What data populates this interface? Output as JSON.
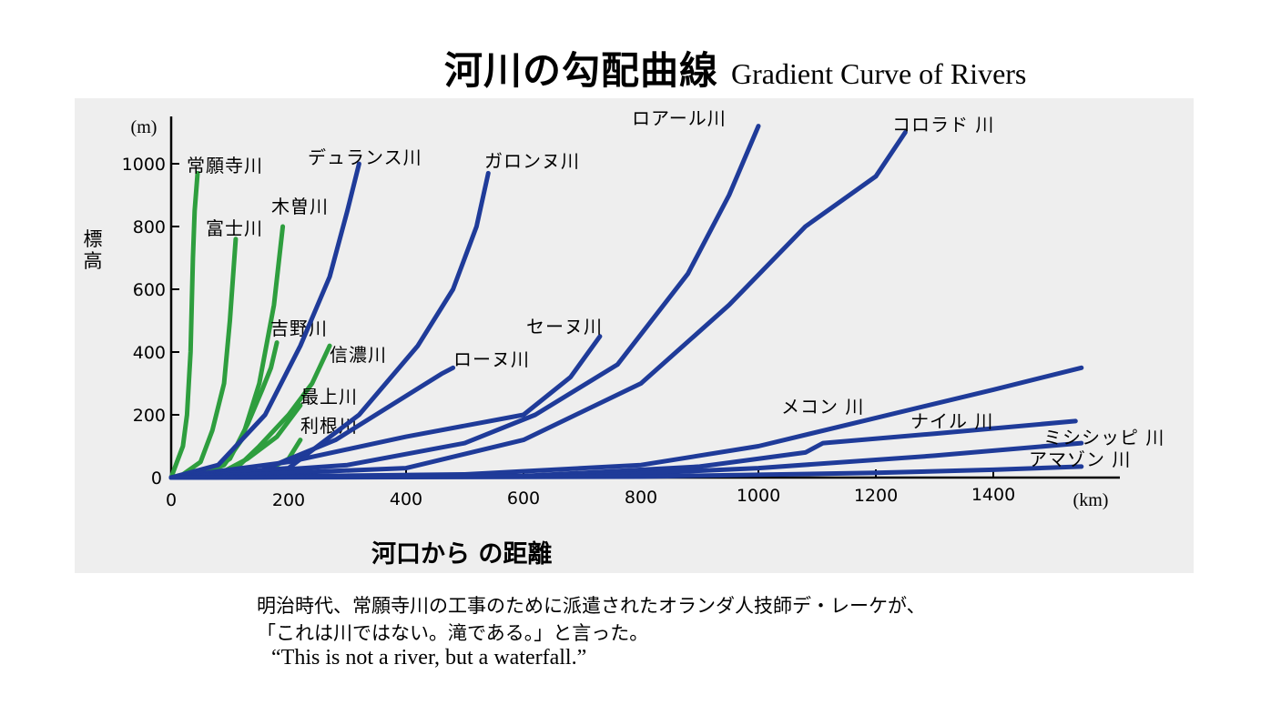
{
  "title": {
    "jp": "河川の勾配曲線",
    "en": "Gradient Curve of Rivers"
  },
  "colors": {
    "panel": "#eeeeee",
    "domestic": "#2e9e3e",
    "foreign": "#1f3b99",
    "axis": "#000000"
  },
  "chart_data": {
    "type": "line",
    "xlabel": "河口から の距離",
    "ylabel": "標高",
    "x_unit": "(km)",
    "y_unit": "(m)",
    "xlim": [
      0,
      1620
    ],
    "ylim": [
      0,
      1150
    ],
    "x_ticks": [
      0,
      200,
      400,
      600,
      800,
      1000,
      1200,
      1400
    ],
    "x_tick_labels": [
      "0",
      "200",
      "400",
      "600",
      "800",
      "1000",
      "1200",
      "1400"
    ],
    "y_ticks": [
      0,
      200,
      400,
      600,
      800,
      1000
    ],
    "y_tick_labels": [
      "0",
      "200",
      "400",
      "600",
      "800",
      "1000"
    ],
    "grid": false,
    "legend": "none",
    "series": [
      {
        "name": "常願寺川",
        "group": "domestic",
        "points": [
          [
            0,
            0
          ],
          [
            10,
            50
          ],
          [
            20,
            100
          ],
          [
            27,
            200
          ],
          [
            33,
            400
          ],
          [
            37,
            700
          ],
          [
            40,
            850
          ],
          [
            45,
            970
          ]
        ]
      },
      {
        "name": "富士川",
        "group": "domestic",
        "points": [
          [
            0,
            0
          ],
          [
            20,
            10
          ],
          [
            50,
            50
          ],
          [
            70,
            150
          ],
          [
            90,
            300
          ],
          [
            100,
            500
          ],
          [
            110,
            760
          ]
        ]
      },
      {
        "name": "木曽川",
        "group": "domestic",
        "points": [
          [
            0,
            0
          ],
          [
            50,
            10
          ],
          [
            90,
            40
          ],
          [
            120,
            120
          ],
          [
            150,
            300
          ],
          [
            175,
            550
          ],
          [
            190,
            800
          ]
        ]
      },
      {
        "name": "吉野川",
        "group": "domestic",
        "points": [
          [
            0,
            0
          ],
          [
            60,
            10
          ],
          [
            100,
            60
          ],
          [
            130,
            170
          ],
          [
            155,
            280
          ],
          [
            170,
            350
          ],
          [
            180,
            430
          ]
        ]
      },
      {
        "name": "信濃川",
        "group": "domestic",
        "points": [
          [
            0,
            0
          ],
          [
            100,
            10
          ],
          [
            150,
            100
          ],
          [
            200,
            200
          ],
          [
            240,
            300
          ],
          [
            270,
            420
          ]
        ]
      },
      {
        "name": "最上川",
        "group": "domestic",
        "points": [
          [
            0,
            0
          ],
          [
            80,
            10
          ],
          [
            130,
            60
          ],
          [
            180,
            130
          ],
          [
            220,
            230
          ]
        ]
      },
      {
        "name": "利根川",
        "group": "domestic",
        "points": [
          [
            0,
            0
          ],
          [
            100,
            5
          ],
          [
            160,
            20
          ],
          [
            200,
            60
          ],
          [
            220,
            120
          ]
        ]
      },
      {
        "name": "デュランス川",
        "group": "foreign",
        "points": [
          [
            0,
            0
          ],
          [
            80,
            40
          ],
          [
            160,
            200
          ],
          [
            220,
            420
          ],
          [
            270,
            640
          ],
          [
            300,
            850
          ],
          [
            320,
            1000
          ]
        ]
      },
      {
        "name": "ガロンヌ川",
        "group": "foreign",
        "points": [
          [
            0,
            0
          ],
          [
            200,
            30
          ],
          [
            320,
            200
          ],
          [
            420,
            420
          ],
          [
            480,
            600
          ],
          [
            520,
            800
          ],
          [
            540,
            970
          ]
        ]
      },
      {
        "name": "ローヌ川",
        "group": "foreign",
        "points": [
          [
            0,
            0
          ],
          [
            150,
            20
          ],
          [
            280,
            120
          ],
          [
            400,
            260
          ],
          [
            460,
            330
          ],
          [
            480,
            350
          ]
        ]
      },
      {
        "name": "セーヌ川",
        "group": "foreign",
        "points": [
          [
            0,
            0
          ],
          [
            200,
            50
          ],
          [
            400,
            130
          ],
          [
            600,
            200
          ],
          [
            680,
            320
          ],
          [
            730,
            450
          ]
        ]
      },
      {
        "name": "ロアール川",
        "group": "foreign",
        "points": [
          [
            0,
            0
          ],
          [
            300,
            40
          ],
          [
            500,
            110
          ],
          [
            620,
            200
          ],
          [
            760,
            360
          ],
          [
            880,
            650
          ],
          [
            950,
            900
          ],
          [
            1000,
            1120
          ]
        ]
      },
      {
        "name": "コロラド 川",
        "group": "foreign",
        "points": [
          [
            0,
            0
          ],
          [
            400,
            30
          ],
          [
            600,
            120
          ],
          [
            800,
            300
          ],
          [
            950,
            550
          ],
          [
            1080,
            800
          ],
          [
            1200,
            960
          ],
          [
            1250,
            1100
          ]
        ]
      },
      {
        "name": "メコン 川",
        "group": "foreign",
        "points": [
          [
            0,
            0
          ],
          [
            500,
            10
          ],
          [
            800,
            40
          ],
          [
            1000,
            100
          ],
          [
            1200,
            190
          ],
          [
            1400,
            280
          ],
          [
            1550,
            350
          ]
        ]
      },
      {
        "name": "ナイル 川",
        "group": "foreign",
        "points": [
          [
            0,
            0
          ],
          [
            600,
            5
          ],
          [
            900,
            35
          ],
          [
            1080,
            80
          ],
          [
            1110,
            110
          ],
          [
            1300,
            140
          ],
          [
            1540,
            180
          ]
        ]
      },
      {
        "name": "ミシシッピ 川",
        "group": "foreign",
        "points": [
          [
            0,
            0
          ],
          [
            700,
            5
          ],
          [
            1000,
            30
          ],
          [
            1300,
            70
          ],
          [
            1550,
            110
          ]
        ]
      },
      {
        "name": "アマゾン 川",
        "group": "foreign",
        "points": [
          [
            0,
            0
          ],
          [
            800,
            3
          ],
          [
            1200,
            15
          ],
          [
            1400,
            25
          ],
          [
            1550,
            35
          ]
        ]
      }
    ]
  },
  "captions": [
    "明治時代、常願寺川の工事のために派遣されたオランダ人技師デ・レーケが、",
    "「これは川ではない。滝である。」と言った。"
  ],
  "quote": "“This is not a river, but a waterfall.”"
}
